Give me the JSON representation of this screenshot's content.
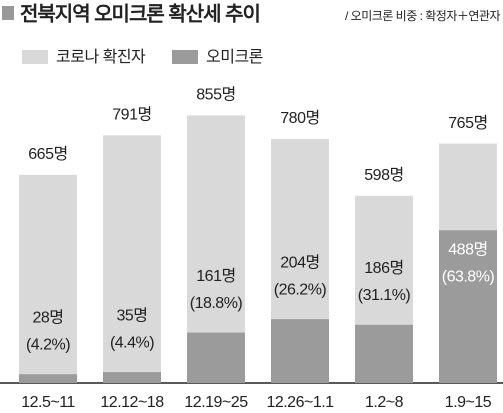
{
  "chart_data": {
    "type": "bar",
    "title": "전북지역 오미크론 확산세 추이",
    "subtitle": "/ 오미크론 비중 : 확정자＋연관자",
    "categories": [
      "12.5~11",
      "12.12~18",
      "12.19~25",
      "12.26~1.1",
      "1.2~8",
      "1.9~15"
    ],
    "series": [
      {
        "name": "코로나 확진자",
        "color": "#d9d9d9",
        "values": [
          665,
          791,
          855,
          780,
          598,
          765
        ],
        "value_labels": [
          "665명",
          "791명",
          "855명",
          "780명",
          "598명",
          "765명"
        ]
      },
      {
        "name": "오미크론",
        "color": "#9b9b9b",
        "values": [
          28,
          35,
          161,
          204,
          186,
          488
        ],
        "value_labels": [
          "28명",
          "35명",
          "161명",
          "204명",
          "186명",
          "488명"
        ],
        "share_labels": [
          "(4.2%)",
          "(4.4%)",
          "(18.8%)",
          "(26.2%)",
          "(31.1%)",
          "(63.8%)"
        ]
      }
    ]
  }
}
